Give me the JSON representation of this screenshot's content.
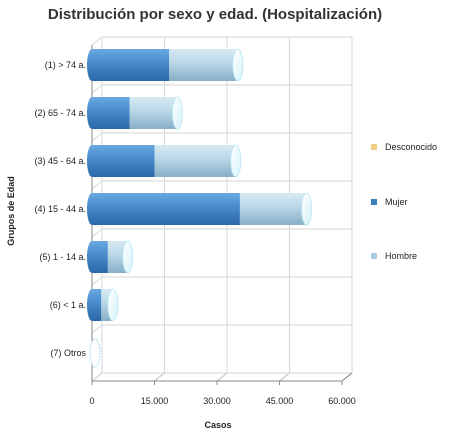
{
  "chart_data": {
    "type": "bar",
    "orientation": "horizontal",
    "stacked": true,
    "style": "3d-cylinder",
    "title": "Distribución por sexo y edad. (Hospitalización)",
    "xlabel": "Casos",
    "ylabel": "Grupos de Edad",
    "xlim": [
      0,
      60000
    ],
    "xticks": [
      0,
      15000,
      30000,
      45000,
      60000
    ],
    "xtick_labels": [
      "0",
      "15.000",
      "30.000",
      "45.000",
      "60.000"
    ],
    "grid": true,
    "legend_position": "right",
    "categories": [
      "(1) > 74 a.",
      "(2) 65 - 74 a.",
      "(3) 45 - 64 a.",
      "(4) 15 - 44 a.",
      "(5) 1 - 14 a.",
      "(6) < 1 a.",
      "(7) Otros"
    ],
    "series": [
      {
        "name": "Mujer",
        "color": "#3b7fc0",
        "values": [
          18500,
          9000,
          15000,
          35500,
          3800,
          2200,
          0
        ]
      },
      {
        "name": "Hombre",
        "color": "#a9cde0",
        "values": [
          16500,
          11500,
          19500,
          16000,
          4800,
          2800,
          0
        ]
      },
      {
        "name": "Desconocido",
        "color": "#f0cf8a",
        "values": [
          0,
          0,
          0,
          0,
          0,
          0,
          0
        ]
      }
    ],
    "legend_order": [
      "Desconocido",
      "Mujer",
      "Hombre"
    ]
  }
}
